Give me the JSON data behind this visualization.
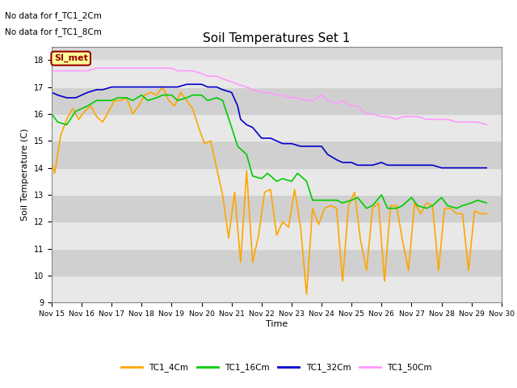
{
  "title": "Soil Temperatures Set 1",
  "xlabel": "Time",
  "ylabel": "Soil Temperature (C)",
  "ylim": [
    9.0,
    18.5
  ],
  "yticks": [
    9.0,
    10.0,
    11.0,
    12.0,
    13.0,
    14.0,
    15.0,
    16.0,
    17.0,
    18.0
  ],
  "background_color": "#f0f0f0",
  "plot_bg_color": "#d8d8d8",
  "annotations": [
    "No data for f_TC1_2Cm",
    "No data for f_TC1_8Cm"
  ],
  "legend_entries": [
    "TC1_4Cm",
    "TC1_16Cm",
    "TC1_32Cm",
    "TC1_50Cm"
  ],
  "line_colors": [
    "#FFA500",
    "#00CC00",
    "#0000CC",
    "#FF99FF"
  ],
  "note_box_text": "SI_met",
  "note_box_bg": "#FFFF99",
  "note_box_border": "#990000",
  "x_start": 15,
  "x_end": 30,
  "x_ticks": [
    15,
    16,
    17,
    18,
    19,
    20,
    21,
    22,
    23,
    24,
    25,
    26,
    27,
    28,
    29,
    30
  ],
  "x_tick_labels": [
    "Nov 15",
    "Nov 16",
    "Nov 17",
    "Nov 18",
    "Nov 19",
    "Nov 20",
    "Nov 21",
    "Nov 22",
    "Nov 23",
    "Nov 24",
    "Nov 25",
    "Nov 26",
    "Nov 27",
    "Nov 28",
    "Nov 29",
    "Nov 30"
  ],
  "TC1_4Cm_x": [
    15.0,
    15.1,
    15.2,
    15.3,
    15.5,
    15.7,
    15.9,
    16.1,
    16.3,
    16.5,
    16.7,
    16.9,
    17.1,
    17.3,
    17.5,
    17.7,
    17.9,
    18.1,
    18.3,
    18.5,
    18.7,
    18.9,
    19.1,
    19.3,
    19.5,
    19.7,
    19.9,
    20.1,
    20.3,
    20.5,
    20.7,
    20.9,
    21.1,
    21.3,
    21.5,
    21.7,
    21.9,
    22.1,
    22.3,
    22.5,
    22.7,
    22.9,
    23.1,
    23.3,
    23.5,
    23.7,
    23.9,
    24.1,
    24.3,
    24.5,
    24.7,
    24.9,
    25.1,
    25.3,
    25.5,
    25.7,
    25.9,
    26.1,
    26.3,
    26.5,
    26.7,
    26.9,
    27.1,
    27.3,
    27.5,
    27.7,
    27.9,
    28.1,
    28.3,
    28.5,
    28.7,
    28.9,
    29.1,
    29.3,
    29.5
  ],
  "TC1_4Cm_y": [
    14.2,
    13.8,
    14.5,
    15.2,
    15.8,
    16.2,
    15.8,
    16.1,
    16.3,
    15.9,
    15.7,
    16.1,
    16.5,
    16.5,
    16.6,
    16.0,
    16.3,
    16.7,
    16.8,
    16.7,
    17.0,
    16.5,
    16.3,
    16.8,
    16.5,
    16.2,
    15.5,
    14.9,
    15.0,
    14.0,
    13.0,
    11.4,
    13.1,
    10.5,
    13.9,
    10.5,
    11.5,
    13.1,
    13.2,
    11.5,
    12.0,
    11.8,
    13.2,
    11.8,
    9.3,
    12.5,
    11.9,
    12.5,
    12.6,
    12.5,
    9.8,
    12.6,
    13.1,
    11.3,
    10.2,
    12.5,
    12.7,
    9.8,
    12.6,
    12.6,
    11.3,
    10.2,
    12.7,
    12.3,
    12.7,
    12.6,
    10.2,
    12.5,
    12.5,
    12.3,
    12.3,
    10.2,
    12.4,
    12.3,
    12.3
  ],
  "TC1_16Cm_x": [
    15.0,
    15.2,
    15.5,
    15.8,
    16.0,
    16.2,
    16.5,
    16.7,
    17.0,
    17.2,
    17.5,
    17.7,
    18.0,
    18.2,
    18.5,
    18.7,
    19.0,
    19.2,
    19.5,
    19.7,
    20.0,
    20.2,
    20.5,
    20.7,
    21.0,
    21.2,
    21.5,
    21.7,
    22.0,
    22.2,
    22.5,
    22.7,
    23.0,
    23.2,
    23.5,
    23.7,
    24.0,
    24.2,
    24.5,
    24.7,
    25.0,
    25.2,
    25.5,
    25.7,
    26.0,
    26.2,
    26.5,
    26.7,
    27.0,
    27.2,
    27.5,
    27.7,
    28.0,
    28.2,
    28.5,
    28.7,
    29.0,
    29.2,
    29.5
  ],
  "TC1_16Cm_y": [
    16.0,
    15.7,
    15.6,
    16.1,
    16.2,
    16.3,
    16.5,
    16.5,
    16.5,
    16.6,
    16.6,
    16.5,
    16.7,
    16.5,
    16.6,
    16.7,
    16.7,
    16.5,
    16.6,
    16.7,
    16.7,
    16.5,
    16.6,
    16.5,
    15.5,
    14.8,
    14.5,
    13.7,
    13.6,
    13.8,
    13.5,
    13.6,
    13.5,
    13.8,
    13.5,
    12.8,
    12.8,
    12.8,
    12.8,
    12.7,
    12.8,
    12.9,
    12.5,
    12.6,
    13.0,
    12.5,
    12.5,
    12.6,
    12.9,
    12.6,
    12.5,
    12.6,
    12.9,
    12.6,
    12.5,
    12.6,
    12.7,
    12.8,
    12.7
  ],
  "TC1_32Cm_x": [
    15.0,
    15.2,
    15.5,
    15.8,
    16.0,
    16.2,
    16.5,
    16.7,
    17.0,
    17.2,
    17.5,
    17.7,
    18.0,
    18.2,
    18.5,
    18.7,
    19.0,
    19.2,
    19.5,
    19.7,
    20.0,
    20.2,
    20.5,
    20.7,
    21.0,
    21.2,
    21.3,
    21.5,
    21.7,
    22.0,
    22.3,
    22.5,
    22.7,
    23.0,
    23.3,
    23.5,
    23.7,
    24.0,
    24.2,
    24.5,
    24.7,
    25.0,
    25.2,
    25.5,
    25.7,
    26.0,
    26.2,
    26.5,
    26.7,
    27.0,
    27.2,
    27.5,
    27.7,
    28.0,
    28.2,
    28.5,
    28.7,
    29.0,
    29.2,
    29.5
  ],
  "TC1_32Cm_y": [
    16.8,
    16.7,
    16.6,
    16.6,
    16.7,
    16.8,
    16.9,
    16.9,
    17.0,
    17.0,
    17.0,
    17.0,
    17.0,
    17.0,
    17.0,
    17.0,
    17.0,
    17.0,
    17.1,
    17.1,
    17.1,
    17.0,
    17.0,
    16.9,
    16.8,
    16.3,
    15.8,
    15.6,
    15.5,
    15.1,
    15.1,
    15.0,
    14.9,
    14.9,
    14.8,
    14.8,
    14.8,
    14.8,
    14.5,
    14.3,
    14.2,
    14.2,
    14.1,
    14.1,
    14.1,
    14.2,
    14.1,
    14.1,
    14.1,
    14.1,
    14.1,
    14.1,
    14.1,
    14.0,
    14.0,
    14.0,
    14.0,
    14.0,
    14.0,
    14.0
  ],
  "TC1_50Cm_x": [
    15.0,
    15.2,
    15.5,
    15.8,
    16.0,
    16.2,
    16.5,
    16.7,
    17.0,
    17.2,
    17.5,
    17.7,
    18.0,
    18.2,
    18.5,
    18.7,
    19.0,
    19.2,
    19.5,
    19.7,
    20.0,
    20.2,
    20.5,
    20.7,
    21.0,
    21.2,
    21.5,
    21.7,
    22.0,
    22.2,
    22.5,
    22.7,
    23.0,
    23.2,
    23.5,
    23.7,
    24.0,
    24.2,
    24.5,
    24.7,
    25.0,
    25.2,
    25.5,
    25.7,
    26.0,
    26.2,
    26.5,
    26.7,
    27.0,
    27.2,
    27.5,
    27.7,
    28.0,
    28.2,
    28.5,
    28.7,
    29.0,
    29.2,
    29.5
  ],
  "TC1_50Cm_y": [
    17.6,
    17.6,
    17.6,
    17.6,
    17.6,
    17.6,
    17.7,
    17.7,
    17.7,
    17.7,
    17.7,
    17.7,
    17.7,
    17.7,
    17.7,
    17.7,
    17.7,
    17.6,
    17.6,
    17.6,
    17.5,
    17.4,
    17.4,
    17.3,
    17.2,
    17.1,
    17.0,
    16.9,
    16.8,
    16.8,
    16.7,
    16.7,
    16.6,
    16.6,
    16.5,
    16.5,
    16.7,
    16.5,
    16.4,
    16.5,
    16.3,
    16.3,
    16.0,
    16.0,
    15.9,
    15.9,
    15.8,
    15.9,
    15.9,
    15.9,
    15.8,
    15.8,
    15.8,
    15.8,
    15.7,
    15.7,
    15.7,
    15.7,
    15.6
  ]
}
